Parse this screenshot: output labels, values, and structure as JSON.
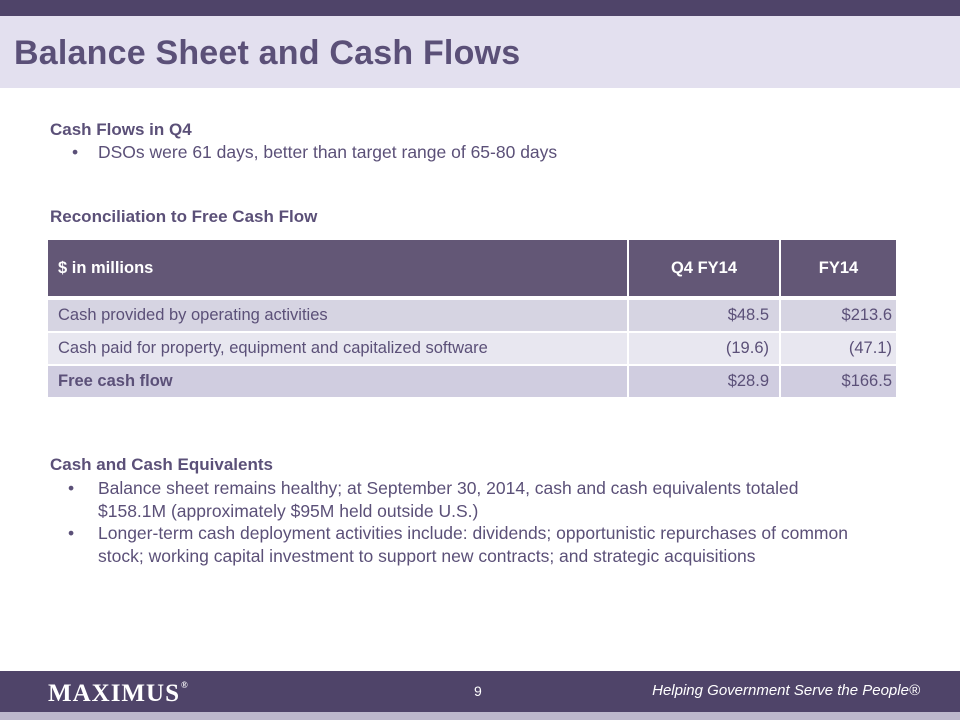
{
  "title": "Balance Sheet and Cash Flows",
  "cash_flows": {
    "heading": "Cash Flows in Q4",
    "bullets": [
      "DSOs were 61 days, better than target range of 65-80 days"
    ]
  },
  "reconciliation": {
    "heading": "Reconciliation to Free Cash Flow",
    "columns": [
      "$ in millions",
      "Q4 FY14",
      "FY14"
    ],
    "rows": [
      {
        "label": "Cash provided by operating activities",
        "q4": "$48.5",
        "fy": "$213.6"
      },
      {
        "label": "Cash paid for property, equipment and capitalized software",
        "q4": "(19.6)",
        "fy": "(47.1)"
      },
      {
        "label": "Free cash flow",
        "q4": "$28.9",
        "fy": "$166.5"
      }
    ]
  },
  "cash_equivalents": {
    "heading": "Cash and Cash Equivalents",
    "bullets": [
      {
        "line1": "Balance sheet remains healthy; at September 30, 2014, cash and cash equivalents totaled",
        "line2": "$158.1M (approximately $95M held outside U.S.)"
      },
      {
        "line1": "Longer-term cash deployment activities include: dividends; opportunistic repurchases of common",
        "line2": "stock; working capital investment to support new contracts; and strategic acquisitions"
      }
    ]
  },
  "footer": {
    "logo": "MAXIMUS",
    "page_number": "9",
    "tagline": "Helping Government Serve the People®"
  },
  "colors": {
    "primary": "#4f4469",
    "text": "#5b5078",
    "title_band": "#e3e0ef"
  }
}
